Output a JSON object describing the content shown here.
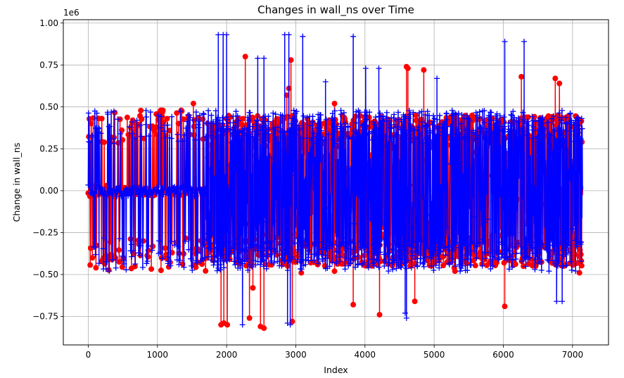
{
  "chart_data": {
    "type": "line",
    "title": "Changes in wall_ns over Time",
    "xlabel": "Index",
    "ylabel": "Change in wall_ns",
    "y_offset_label": "1e6",
    "xlim": [
      -360,
      7520
    ],
    "ylim": [
      -0.92,
      1.02
    ],
    "x_ticks": [
      0,
      1000,
      2000,
      3000,
      4000,
      5000,
      6000,
      7000
    ],
    "y_ticks": [
      -0.75,
      -0.5,
      -0.25,
      0.0,
      0.25,
      0.5,
      0.75,
      1.0
    ],
    "x_tick_labels": [
      "0",
      "1000",
      "2000",
      "3000",
      "4000",
      "5000",
      "6000",
      "7000"
    ],
    "y_tick_labels": [
      "−0.75",
      "−0.50",
      "−0.25",
      "0.00",
      "0.25",
      "0.50",
      "0.75",
      "1.00"
    ],
    "grid": true,
    "n_points": 7150,
    "series": [
      {
        "marker": "circle",
        "color": "#ff0000",
        "notable_points": [
          [
            2270,
            0.8
          ],
          [
            1920,
            -0.8
          ],
          [
            1960,
            -0.79
          ],
          [
            2010,
            -0.8
          ],
          [
            2330,
            -0.76
          ],
          [
            2380,
            -0.58
          ],
          [
            2490,
            -0.81
          ],
          [
            2540,
            -0.82
          ],
          [
            2870,
            0.57
          ],
          [
            2930,
            0.78
          ],
          [
            2950,
            -0.78
          ],
          [
            3080,
            -0.49
          ],
          [
            3560,
            0.52
          ],
          [
            3560,
            -0.48
          ],
          [
            3830,
            -0.68
          ],
          [
            4210,
            -0.74
          ],
          [
            4600,
            0.74
          ],
          [
            4720,
            -0.66
          ],
          [
            4850,
            0.72
          ],
          [
            5290,
            -0.46
          ],
          [
            6020,
            -0.69
          ],
          [
            6260,
            0.68
          ],
          [
            6290,
            -0.45
          ],
          [
            6750,
            0.67
          ],
          [
            6810,
            0.64
          ],
          [
            7100,
            -0.49
          ],
          [
            1050,
            0.48
          ],
          [
            1520,
            0.52
          ],
          [
            2900,
            0.61
          ],
          [
            4620,
            0.73
          ],
          [
            5300,
            -0.48
          ],
          [
            6010,
            -0.43
          ]
        ]
      },
      {
        "marker": "plus",
        "color": "#0000ff",
        "notable_points": [
          [
            1880,
            0.93
          ],
          [
            1950,
            0.93
          ],
          [
            2000,
            0.93
          ],
          [
            2450,
            0.79
          ],
          [
            2540,
            0.79
          ],
          [
            2840,
            0.93
          ],
          [
            2900,
            0.93
          ],
          [
            3100,
            0.92
          ],
          [
            3830,
            0.92
          ],
          [
            4010,
            0.73
          ],
          [
            4200,
            0.73
          ],
          [
            4580,
            -0.73
          ],
          [
            4600,
            -0.76
          ],
          [
            5040,
            0.67
          ],
          [
            6020,
            0.89
          ],
          [
            6300,
            0.89
          ],
          [
            6770,
            -0.66
          ],
          [
            6850,
            -0.66
          ],
          [
            2230,
            -0.8
          ],
          [
            2880,
            -0.79
          ],
          [
            2920,
            -0.8
          ],
          [
            3430,
            0.65
          ]
        ]
      }
    ]
  }
}
